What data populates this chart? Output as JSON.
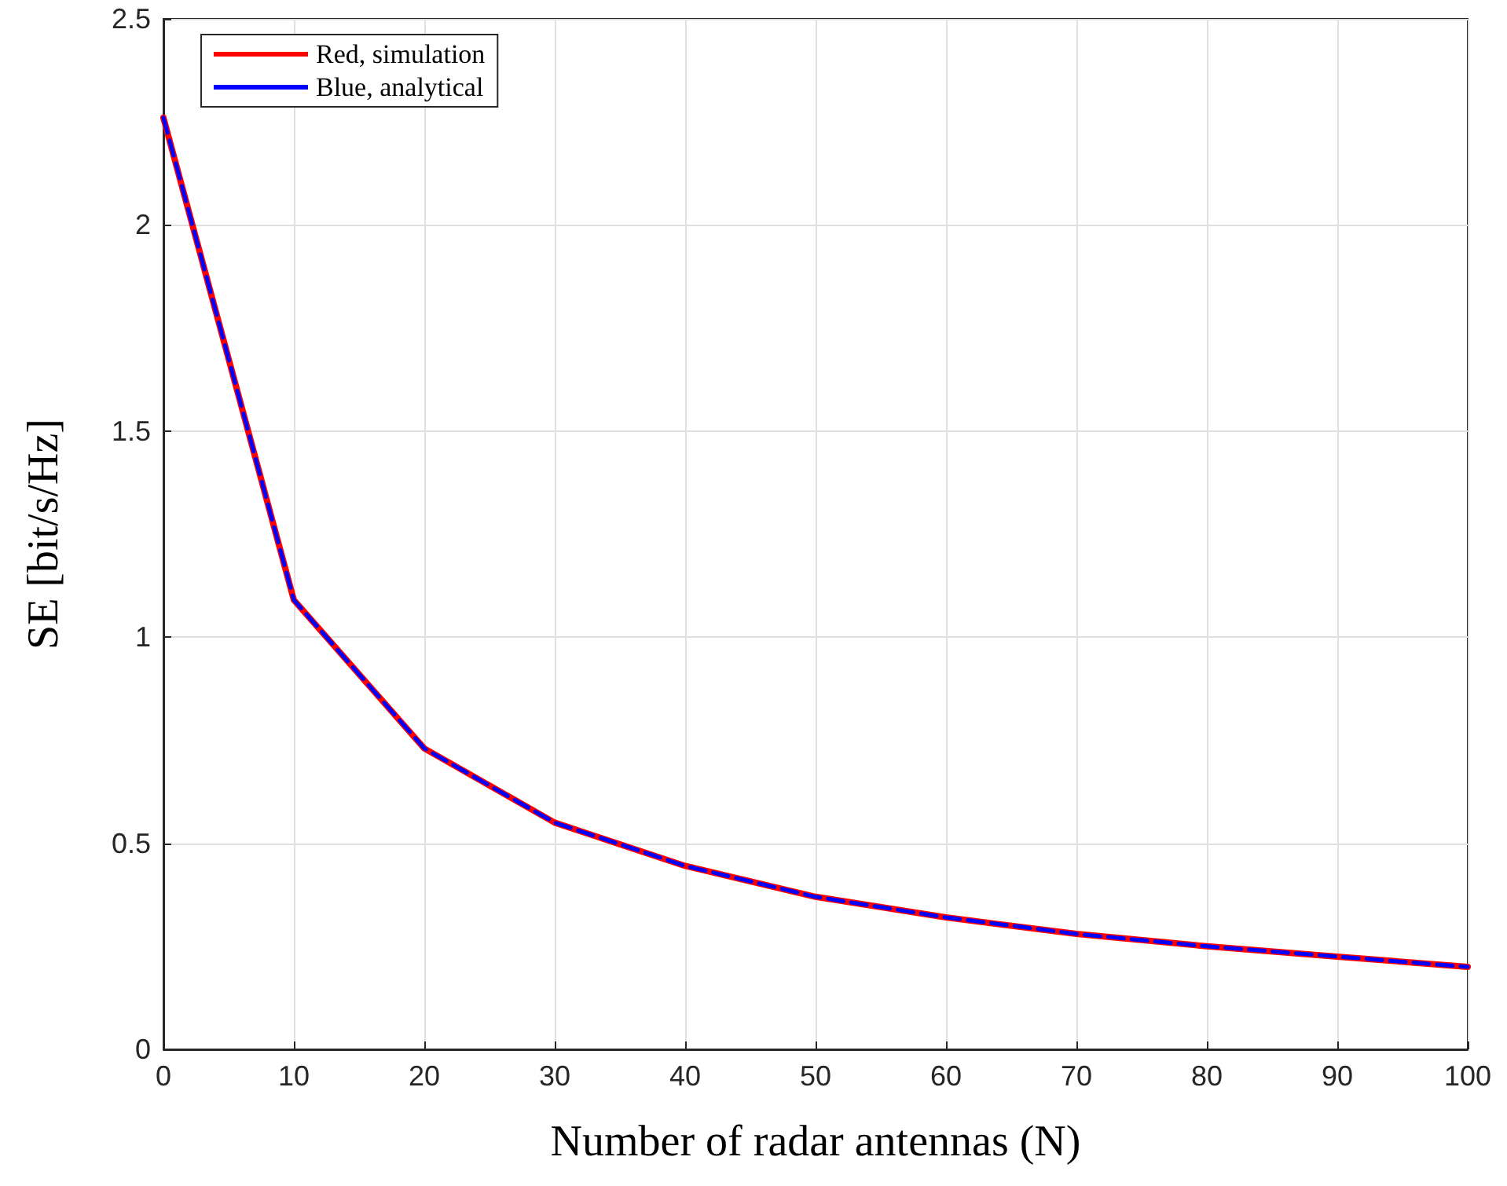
{
  "chart_data": {
    "type": "line",
    "xlabel": "Number of radar antennas (N)",
    "ylabel": "SE [bit/s/Hz]",
    "x": [
      0,
      10,
      20,
      30,
      40,
      50,
      60,
      70,
      80,
      90,
      100
    ],
    "series": [
      {
        "name": "Red, simulation",
        "color": "#ff0000",
        "line_style": "solid",
        "values": [
          2.26,
          1.09,
          0.73,
          0.55,
          0.445,
          0.37,
          0.32,
          0.28,
          0.25,
          0.225,
          0.2
        ]
      },
      {
        "name": "Blue, analytical",
        "color": "#0000ff",
        "line_style": "dashed",
        "values": [
          2.26,
          1.09,
          0.73,
          0.55,
          0.445,
          0.37,
          0.32,
          0.28,
          0.25,
          0.225,
          0.2
        ]
      }
    ],
    "xlim": [
      0,
      100
    ],
    "xticks": [
      0,
      10,
      20,
      30,
      40,
      50,
      60,
      70,
      80,
      90,
      100
    ],
    "ylim": [
      0,
      2.5
    ],
    "yticks": [
      0,
      0.5,
      1,
      1.5,
      2,
      2.5
    ],
    "grid": true,
    "legend": "top left",
    "marker": "none"
  }
}
